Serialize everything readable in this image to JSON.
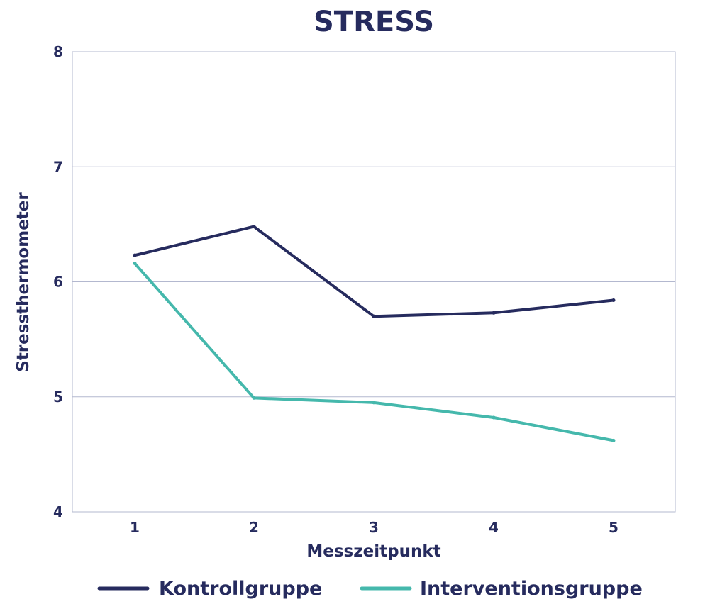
{
  "chart_data": {
    "type": "line",
    "title": "STRESS",
    "xlabel": "Messzeitpunkt",
    "ylabel": "Stressthermometer",
    "categories": [
      "1",
      "2",
      "3",
      "4",
      "5"
    ],
    "ylim": [
      4,
      8
    ],
    "yticks": [
      "4",
      "5",
      "6",
      "7",
      "8"
    ],
    "grid": true,
    "legend_position": "bottom",
    "series": [
      {
        "name": "Kontrollgruppe",
        "color": "#262b5e",
        "values": [
          6.23,
          6.48,
          5.7,
          5.73,
          5.84
        ]
      },
      {
        "name": "Interventionsgruppe",
        "color": "#45b8ac",
        "values": [
          6.16,
          4.99,
          4.95,
          4.82,
          4.62
        ]
      }
    ]
  }
}
